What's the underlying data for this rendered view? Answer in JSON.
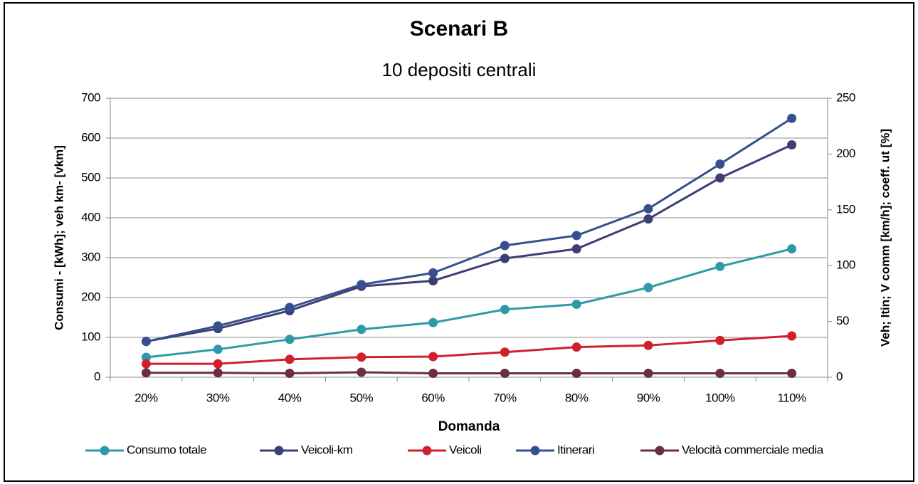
{
  "chart_data": {
    "type": "line",
    "title": "Scenari B",
    "subtitle": "10 depositi centrali",
    "x_label": "Domanda",
    "y_label": "Consumi - [kWh]; veh km- [vkm]",
    "y2_label": "Veh; Itin; V comm [km/h]; coeff. ut [%]",
    "categories": [
      "20%",
      "30%",
      "40%",
      "50%",
      "60%",
      "70%",
      "80%",
      "90%",
      "100%",
      "110%"
    ],
    "ylim": [
      0,
      700
    ],
    "yticks": [
      0,
      100,
      200,
      300,
      400,
      500,
      600,
      700
    ],
    "y2lim": [
      0,
      250
    ],
    "y2ticks": [
      0,
      50,
      100,
      150,
      200,
      250
    ],
    "grid": true,
    "legend": "bottom",
    "series": [
      {
        "name": "Consumo totale",
        "color": "#2e9aa8",
        "values": [
          50,
          70,
          95,
          120,
          137,
          170,
          183,
          225,
          278,
          322
        ]
      },
      {
        "name": "Veicoli-km",
        "color": "#3d3d78",
        "values": [
          90,
          122,
          167,
          228,
          242,
          298,
          322,
          397,
          500,
          583
        ]
      },
      {
        "name": "Veicoli",
        "color": "#d0202e",
        "axis": "y2",
        "values": [
          12,
          12,
          16,
          18,
          18.5,
          22.5,
          27,
          28.5,
          33,
          37
        ]
      },
      {
        "name": "Itinerari",
        "color": "#34508f",
        "axis": "y2",
        "values": [
          32,
          46,
          62.5,
          83,
          93.5,
          118,
          127,
          151,
          191,
          232
        ]
      },
      {
        "name": "Velocità commerciale media",
        "color": "#6b2e48",
        "axis": "y2",
        "values": [
          4,
          4,
          3.5,
          4.5,
          3.5,
          3.5,
          3.5,
          3.5,
          3.5,
          3.5
        ]
      }
    ]
  }
}
